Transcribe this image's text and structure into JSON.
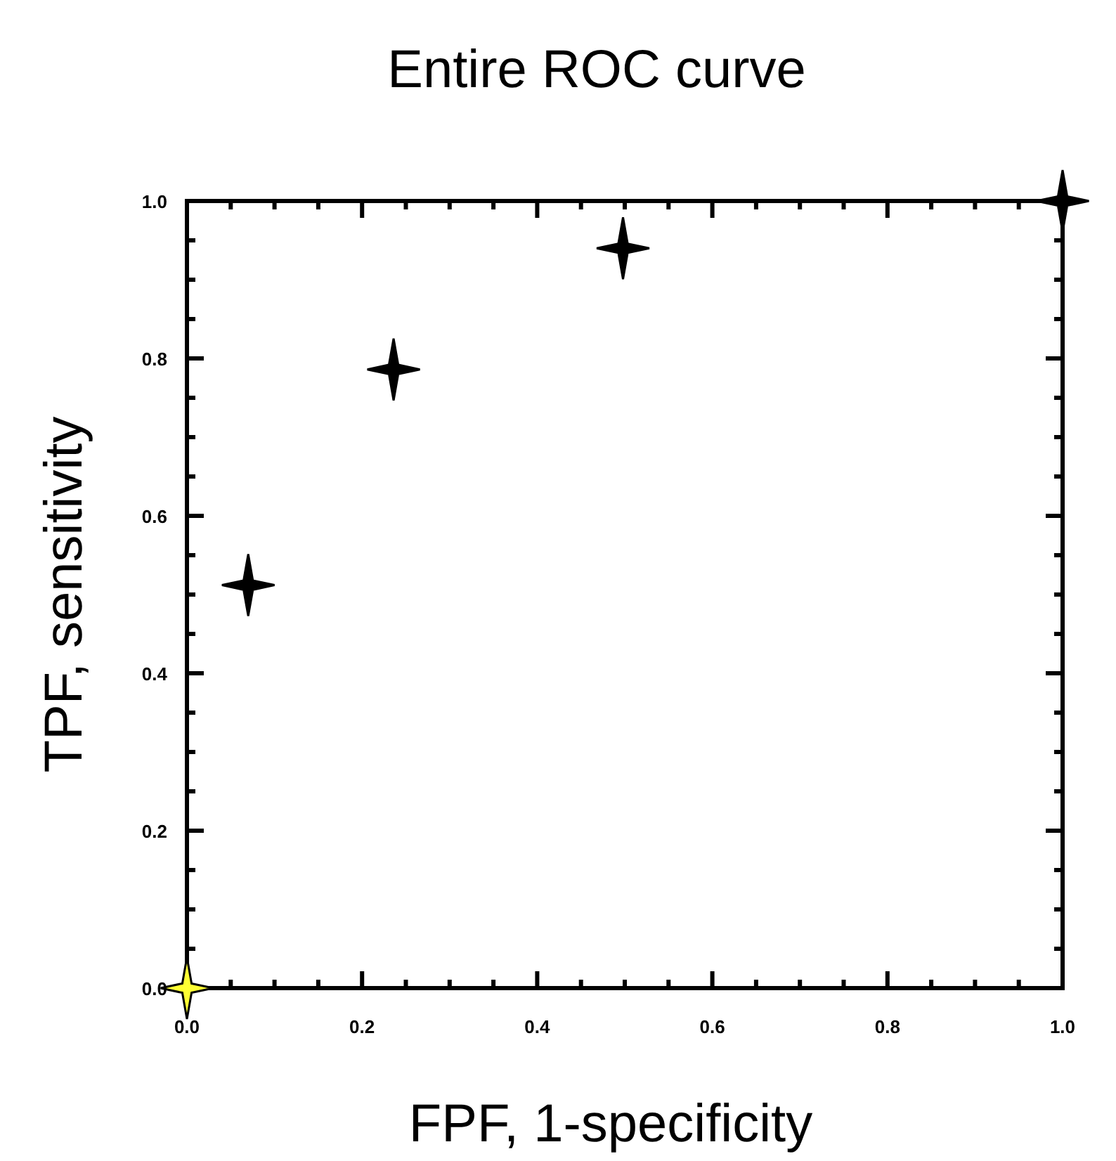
{
  "chart_data": {
    "type": "scatter",
    "title": "Entire ROC curve",
    "xlabel": "FPF, 1-specificity",
    "ylabel": "TPF, sensitivity",
    "xlim": [
      0,
      1
    ],
    "ylim": [
      0,
      1
    ],
    "xticks": [
      {
        "value": 0,
        "label": "0.0"
      },
      0.2,
      0.4,
      0.6,
      0.8,
      {
        "value": 1,
        "label": "1.0"
      }
    ],
    "yticks": [
      {
        "value": 0,
        "label": "0.0"
      },
      0.2,
      0.4,
      0.6,
      0.8,
      {
        "value": 1,
        "label": "1.0"
      }
    ],
    "marker": "star",
    "grid": false,
    "series": [
      {
        "color": "#000000",
        "x": [
          0.07,
          0.236,
          0.498,
          1.0
        ],
        "values": [
          0.512,
          0.786,
          0.94,
          1.0
        ]
      },
      {
        "color": "#ffff33",
        "x": [
          0
        ],
        "values": [
          0
        ]
      }
    ]
  }
}
